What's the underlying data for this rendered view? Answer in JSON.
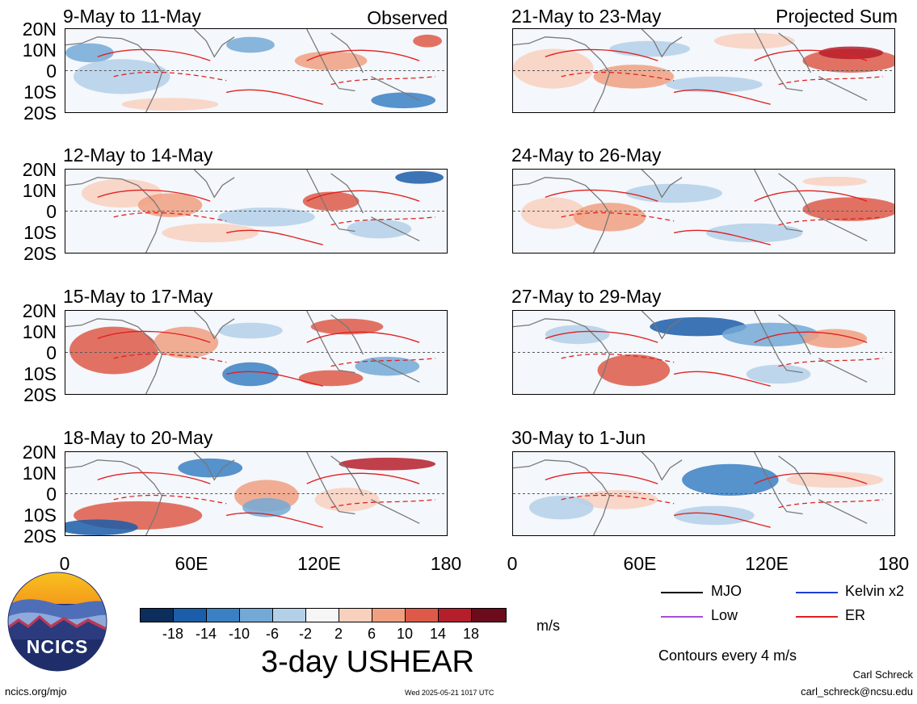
{
  "panels": {
    "left": [
      {
        "label": "9-May to 11-May",
        "corner": "Observed"
      },
      {
        "label": "12-May to 14-May",
        "corner": ""
      },
      {
        "label": "15-May to 17-May",
        "corner": ""
      },
      {
        "label": "18-May to 20-May",
        "corner": ""
      }
    ],
    "right": [
      {
        "label": "21-May to 23-May",
        "corner": "Projected Sum"
      },
      {
        "label": "24-May to 26-May",
        "corner": ""
      },
      {
        "label": "27-May to 29-May",
        "corner": ""
      },
      {
        "label": "30-May to 1-Jun",
        "corner": ""
      }
    ]
  },
  "lat_labels": [
    "20N",
    "10N",
    "0",
    "10S",
    "20S"
  ],
  "lon_labels": [
    "0",
    "60E",
    "120E",
    "180"
  ],
  "legend": {
    "items": [
      {
        "label": "MJO",
        "color": "#000000"
      },
      {
        "label": "Kelvin x2",
        "color": "#1f3fd6"
      },
      {
        "label": "Low",
        "color": "#a64ed6"
      },
      {
        "label": "ER",
        "color": "#e02020"
      }
    ],
    "contours_note": "Contours every 4 m/s"
  },
  "colorbar": {
    "ticks": [
      "-18",
      "-14",
      "-10",
      "-6",
      "-2",
      "2",
      "6",
      "10",
      "14",
      "18"
    ],
    "colors": [
      "#0b2e5c",
      "#1b5da8",
      "#3a80c3",
      "#73a9d6",
      "#b3d0e8",
      "#f6f6f6",
      "#f8d0be",
      "#f0a080",
      "#dd5a48",
      "#b51f2c",
      "#6b0b1c"
    ],
    "unit": "m/s"
  },
  "main_title": "3-day USHEAR",
  "logo_text": "NCICS",
  "footer": {
    "url": "ncics.org/mjo",
    "timestamp": "Wed 2025-05-21 1017 UTC",
    "author": "Carl Schreck",
    "email": "carl_schreck@ncsu.edu"
  }
}
